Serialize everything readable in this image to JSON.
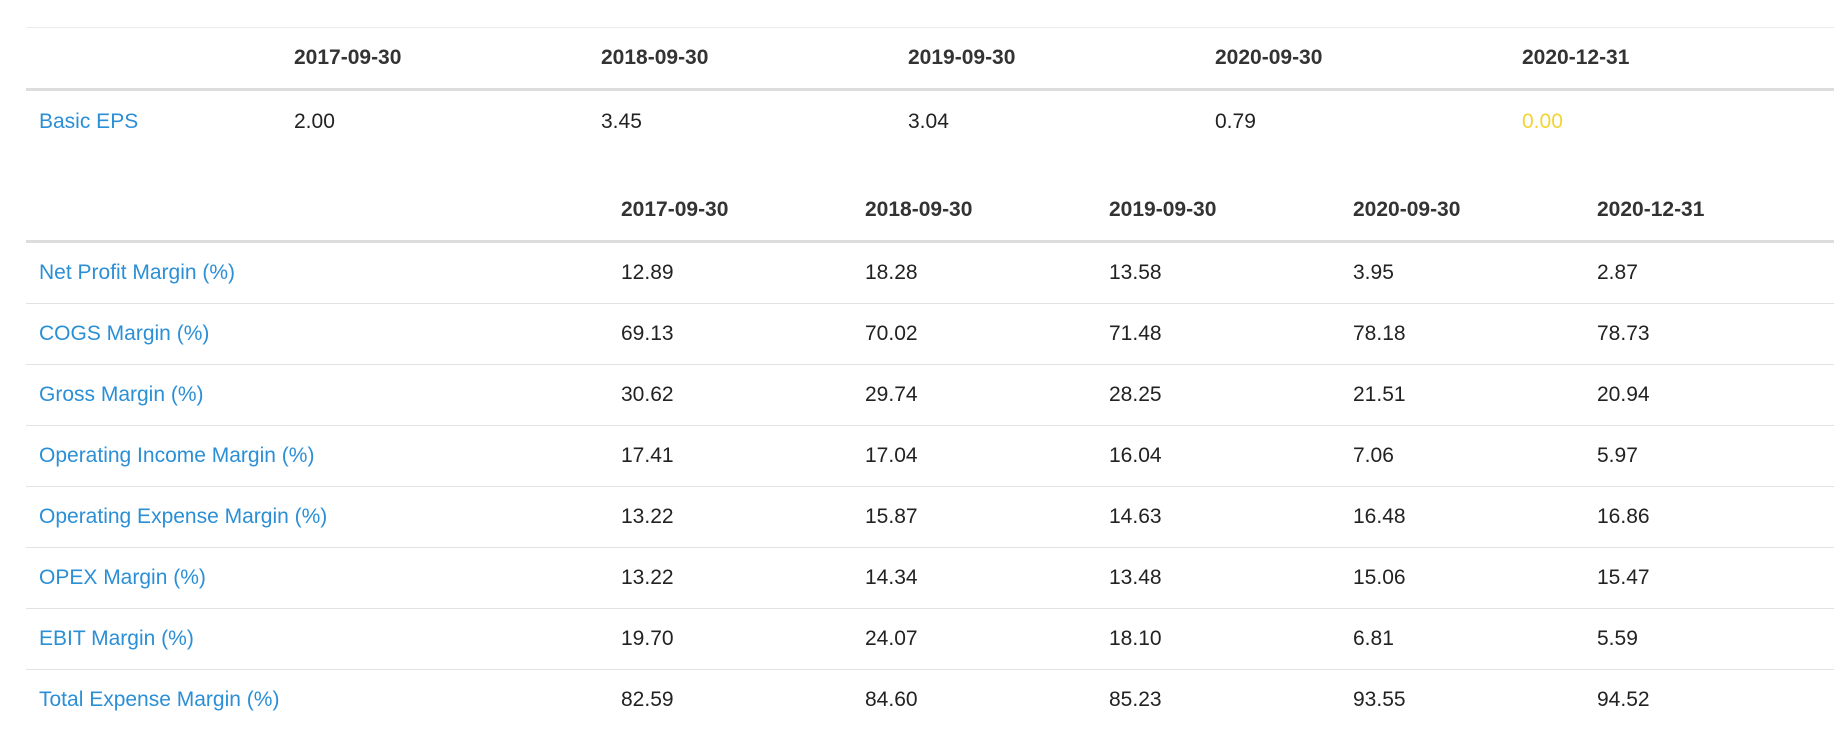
{
  "eps_table": {
    "columns": [
      "2017-09-30",
      "2018-09-30",
      "2019-09-30",
      "2020-09-30",
      "2020-12-31"
    ],
    "rows": [
      {
        "label": "Basic EPS",
        "values": [
          "2.00",
          "3.45",
          "3.04",
          "0.79",
          "0.00"
        ]
      }
    ],
    "zero_value_color": "#f2d433"
  },
  "margin_table": {
    "columns": [
      "2017-09-30",
      "2018-09-30",
      "2019-09-30",
      "2020-09-30",
      "2020-12-31"
    ],
    "rows": [
      {
        "label": "Net Profit Margin (%)",
        "values": [
          "12.89",
          "18.28",
          "13.58",
          "3.95",
          "2.87"
        ]
      },
      {
        "label": "COGS Margin (%)",
        "values": [
          "69.13",
          "70.02",
          "71.48",
          "78.18",
          "78.73"
        ]
      },
      {
        "label": "Gross Margin (%)",
        "values": [
          "30.62",
          "29.74",
          "28.25",
          "21.51",
          "20.94"
        ]
      },
      {
        "label": "Operating Income Margin (%)",
        "values": [
          "17.41",
          "17.04",
          "16.04",
          "7.06",
          "5.97"
        ]
      },
      {
        "label": "Operating Expense Margin (%)",
        "values": [
          "13.22",
          "15.87",
          "14.63",
          "16.48",
          "16.86"
        ]
      },
      {
        "label": "OPEX Margin (%)",
        "values": [
          "13.22",
          "14.34",
          "13.48",
          "15.06",
          "15.47"
        ]
      },
      {
        "label": "EBIT Margin (%)",
        "values": [
          "19.70",
          "24.07",
          "18.10",
          "6.81",
          "5.59"
        ]
      },
      {
        "label": "Total Expense Margin (%)",
        "values": [
          "82.59",
          "84.60",
          "85.23",
          "93.55",
          "94.52"
        ]
      }
    ]
  },
  "colors": {
    "link": "#2b8fd6",
    "header_rule": "#dddddd",
    "row_rule": "#e2e2e2"
  }
}
